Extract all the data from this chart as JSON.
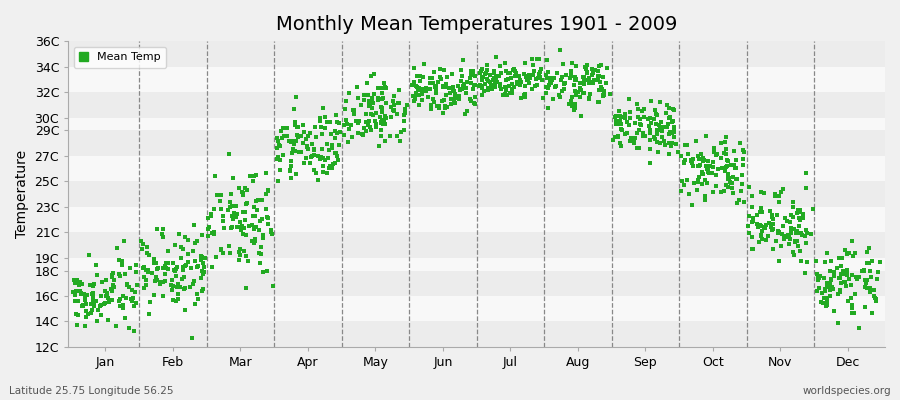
{
  "title": "Monthly Mean Temperatures 1901 - 2009",
  "ylabel": "Temperature",
  "subtitle": "Latitude 25.75 Longitude 56.25",
  "watermark": "worldspecies.org",
  "dot_color": "#22aa22",
  "background_color": "#f0f0f0",
  "plot_bg_color": "#f8f8f8",
  "band_color_1": "#ececec",
  "band_color_2": "#f8f8f8",
  "legend_label": "Mean Temp",
  "ylim": [
    12,
    36
  ],
  "ytick_labels": [
    "12C",
    "14C",
    "16C",
    "18C",
    "19C",
    "21C",
    "23C",
    "25C",
    "27C",
    "29C",
    "30C",
    "32C",
    "34C",
    "36C"
  ],
  "ytick_values": [
    12,
    14,
    16,
    18,
    19,
    21,
    23,
    25,
    27,
    29,
    30,
    32,
    34,
    36
  ],
  "months": [
    "Jan",
    "Feb",
    "Mar",
    "Apr",
    "May",
    "Jun",
    "Jul",
    "Aug",
    "Sep",
    "Oct",
    "Nov",
    "Dec"
  ],
  "month_means": [
    16.2,
    17.8,
    22.0,
    27.8,
    30.5,
    32.0,
    33.0,
    32.5,
    29.2,
    26.0,
    21.5,
    17.2
  ],
  "month_stds": [
    1.3,
    1.5,
    2.0,
    1.5,
    1.2,
    0.9,
    0.8,
    0.9,
    1.0,
    1.2,
    1.5,
    1.3
  ],
  "n_years": 109,
  "dot_size": 8
}
